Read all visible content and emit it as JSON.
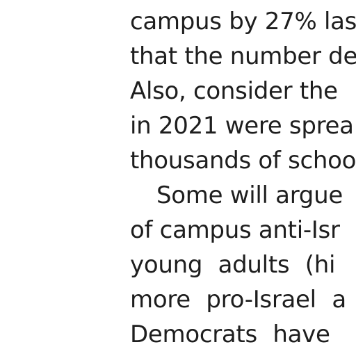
{
  "article": {
    "lines": [
      "campus by 27% las",
      "that the number de",
      "Also, consider the",
      "in 2021 were sprea",
      "thousands of schoo",
      "Some will argue",
      "of campus anti-Isr",
      "young adults (hi",
      "more pro-Israel a",
      "Democrats have"
    ]
  }
}
